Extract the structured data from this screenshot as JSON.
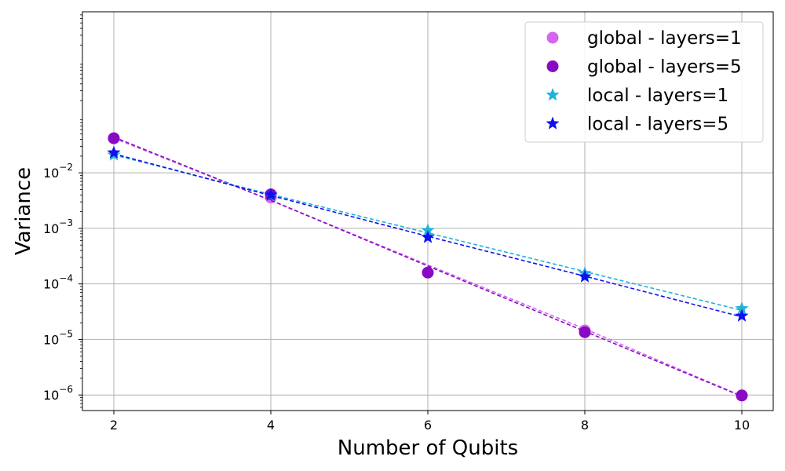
{
  "chart_data": {
    "type": "line",
    "title": "",
    "xlabel": "Number of Qubits",
    "ylabel": "Variance",
    "yscale": "log",
    "xlim": [
      1.6,
      10.4
    ],
    "ylim_log10": [
      -6.28,
      0.9
    ],
    "xticks": [
      {
        "value": 2,
        "label": "2"
      },
      {
        "value": 4,
        "label": "4"
      },
      {
        "value": 6,
        "label": "6"
      },
      {
        "value": 8,
        "label": "8"
      },
      {
        "value": 10,
        "label": "10"
      }
    ],
    "yticks": [
      {
        "exp": -6,
        "base": "10",
        "sup": "−6"
      },
      {
        "exp": -5,
        "base": "10",
        "sup": "−5"
      },
      {
        "exp": -4,
        "base": "10",
        "sup": "−4"
      },
      {
        "exp": -3,
        "base": "10",
        "sup": "−3"
      },
      {
        "exp": -2,
        "base": "10",
        "sup": "−2"
      }
    ],
    "grid": true,
    "legend_position": "top-right",
    "x": [
      2,
      4,
      6,
      8,
      10
    ],
    "series": [
      {
        "name": "global - layers=1",
        "color": "#d466f0",
        "marker": "circle",
        "values": [
          0.042,
          0.0036,
          0.00016,
          1.45e-05,
          9.8e-07
        ],
        "fit": [
          0.042,
          0.0032,
          0.00022,
          1.55e-05,
          9.6e-07
        ]
      },
      {
        "name": "global - layers=5",
        "color": "#8a0ac4",
        "marker": "circle",
        "values": [
          0.042,
          0.0041,
          0.00016,
          1.35e-05,
          9.8e-07
        ],
        "fit": [
          0.044,
          0.0032,
          0.00021,
          1.4e-05,
          9.5e-07
        ]
      },
      {
        "name": "local - layers=1",
        "color": "#1fb3d8",
        "marker": "star",
        "values": [
          0.021,
          0.0039,
          0.00092,
          0.000155,
          3.6e-05
        ],
        "fit": [
          0.021,
          0.0041,
          0.00083,
          0.000167,
          3.35e-05
        ]
      },
      {
        "name": "local - layers=5",
        "color": "#1010f0",
        "marker": "star",
        "values": [
          0.023,
          0.004,
          0.00069,
          0.000135,
          2.65e-05
        ],
        "fit": [
          0.022,
          0.0039,
          0.00072,
          0.000138,
          2.55e-05
        ]
      }
    ]
  }
}
